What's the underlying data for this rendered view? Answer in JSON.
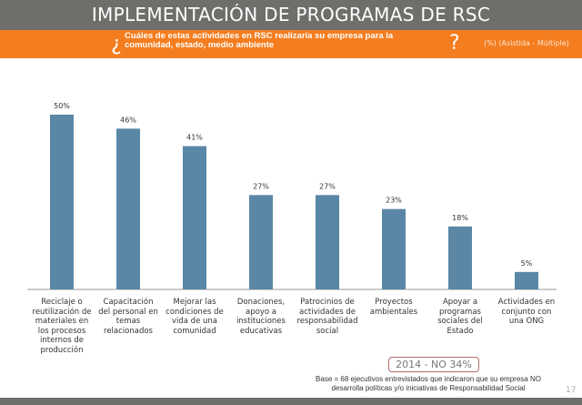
{
  "header": {
    "title": "IMPLEMENTACIÓN DE PROGRAMAS DE RSC"
  },
  "question": {
    "open": "¿",
    "text": "Cuáles de estas actividades en RSC realizaría su empresa para la comunidad, estado, medio ambiente",
    "close": "?",
    "note": "(%) (Asistida - Múltiple)"
  },
  "chart_data": {
    "type": "bar",
    "categories": [
      "Reciclaje o reutilización de materiales en los procesos internos de producción",
      "Capacitación del personal en temas relacionados",
      "Mejorar las condiciones de vida de una comunidad",
      "Donaciones, apoyo a instituciones educativas",
      "Patrocinios de actividades de responsabilidad social",
      "Proyectos ambientales",
      "Apoyar a programas sociales del Estado",
      "Actividades en conjunto con una ONG"
    ],
    "values": [
      50,
      46,
      41,
      27,
      27,
      23,
      18,
      5
    ],
    "labels": [
      "50%",
      "46%",
      "41%",
      "27%",
      "27%",
      "23%",
      "18%",
      "5%"
    ],
    "ylim": [
      0,
      50
    ],
    "grid": false,
    "bar_color": "#5a87a6"
  },
  "footer": {
    "badge": "2014 - NO 34%",
    "base": "Base = 68 ejecutivos entrevistados que indicaron que su empresa NO desarrolla políticas y/o iniciativas de Responsabilidad Social",
    "page": "17"
  }
}
